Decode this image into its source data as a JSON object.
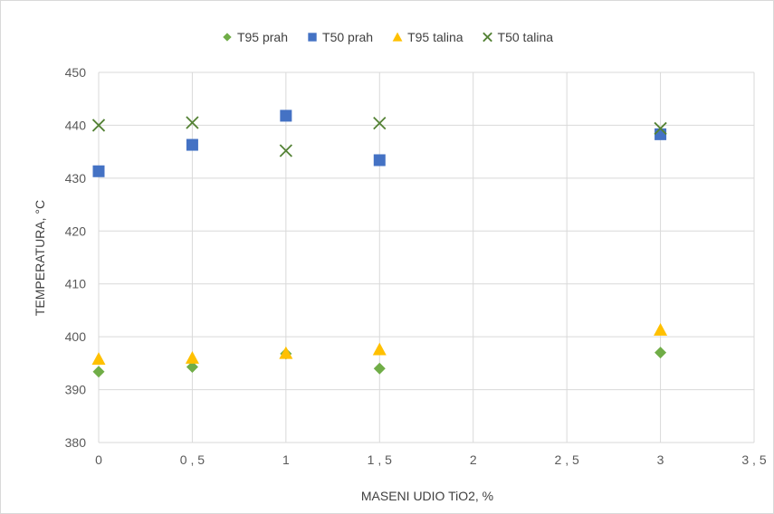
{
  "chart_data": {
    "type": "scatter",
    "title": "",
    "xlabel": "MASENI UDIO TiO2, %",
    "ylabel": "TEMPERATURA, °C",
    "xlim": [
      0,
      3.5
    ],
    "ylim": [
      380,
      450
    ],
    "x_ticks": [
      0,
      0.5,
      1,
      1.5,
      2,
      2.5,
      3,
      3.5
    ],
    "x_tick_labels": [
      "0",
      "0 , 5",
      "1",
      "1 , 5",
      "2",
      "2 , 5",
      "3",
      "3 , 5"
    ],
    "y_ticks": [
      380,
      390,
      400,
      410,
      420,
      430,
      440,
      450
    ],
    "y_tick_labels": [
      "380",
      "390",
      "400",
      "410",
      "420",
      "430",
      "440",
      "450"
    ],
    "grid": true,
    "legend_position": "top",
    "series": [
      {
        "name": "T95 prah",
        "marker": "diamond",
        "color": "#70AD47",
        "x": [
          0,
          0.5,
          1,
          1.5,
          3
        ],
        "y": [
          393.4,
          394.3,
          396.8,
          394.0,
          397.0
        ]
      },
      {
        "name": "T50 prah",
        "marker": "square",
        "color": "#4472C4",
        "x": [
          0,
          0.5,
          1,
          1.5,
          3
        ],
        "y": [
          431.3,
          436.3,
          441.8,
          433.4,
          438.3
        ]
      },
      {
        "name": "T95 talina",
        "marker": "triangle",
        "color": "#FFC000",
        "x": [
          0,
          0.5,
          1,
          1.5,
          3
        ],
        "y": [
          395.8,
          396.0,
          396.9,
          397.6,
          401.3
        ]
      },
      {
        "name": "T50 talina",
        "marker": "x",
        "color": "#548235",
        "x": [
          0,
          0.5,
          1,
          1.5,
          3
        ],
        "y": [
          440.0,
          440.5,
          435.2,
          440.4,
          439.4
        ]
      }
    ]
  }
}
